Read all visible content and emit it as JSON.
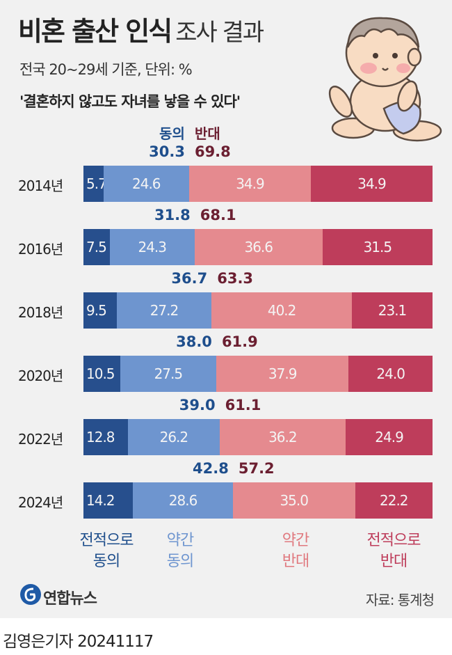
{
  "header": {
    "title_bold": "비혼 출산 인식",
    "title_light": "조사 결과",
    "subtitle": "전국 20~29세 기준, 단위: %",
    "question": "'결혼하지 않고도 자녀를 낳을 수 있다'"
  },
  "column_labels": {
    "agree": "동의",
    "oppose": "반대"
  },
  "legend": {
    "strong_agree": [
      "전적으로",
      "동의"
    ],
    "weak_agree": [
      "약간",
      "동의"
    ],
    "weak_oppose": [
      "약간",
      "반대"
    ],
    "strong_oppose": [
      "전적으로",
      "반대"
    ]
  },
  "colors": {
    "strong_agree": "#274f8d",
    "weak_agree": "#6e95cf",
    "weak_oppose": "#e58a8f",
    "strong_oppose": "#be3d5b",
    "agree_text": "#1e4e8c",
    "oppose_text": "#6b1f31"
  },
  "footer": {
    "logo_text": "연합뉴스",
    "source": "자료: 통계청",
    "credit": "김영은기자 20241117"
  },
  "chart_data": {
    "type": "bar",
    "orientation": "horizontal-stacked",
    "categories": [
      "2014년",
      "2016년",
      "2018년",
      "2020년",
      "2022년",
      "2024년"
    ],
    "series": [
      {
        "name": "전적으로 동의",
        "values": [
          5.7,
          7.5,
          9.5,
          10.5,
          12.8,
          14.2
        ]
      },
      {
        "name": "약간 동의",
        "values": [
          24.6,
          24.3,
          27.2,
          27.5,
          26.2,
          28.6
        ]
      },
      {
        "name": "약간 반대",
        "values": [
          34.9,
          36.6,
          40.2,
          37.9,
          36.2,
          35.0
        ]
      },
      {
        "name": "전적으로 반대",
        "values": [
          34.9,
          31.5,
          23.1,
          24.0,
          24.9,
          22.2
        ]
      }
    ],
    "agree_totals": [
      "30.3",
      "31.8",
      "36.7",
      "38.0",
      "39.0",
      "42.8"
    ],
    "oppose_totals": [
      "69.8",
      "68.1",
      "63.3",
      "61.9",
      "61.1",
      "57.2"
    ],
    "value_labels": [
      [
        "5.7",
        "24.6",
        "34.9",
        "34.9"
      ],
      [
        "7.5",
        "24.3",
        "36.6",
        "31.5"
      ],
      [
        "9.5",
        "27.2",
        "40.2",
        "23.1"
      ],
      [
        "10.5",
        "27.5",
        "37.9",
        "24.0"
      ],
      [
        "12.8",
        "26.2",
        "36.2",
        "24.9"
      ],
      [
        "14.2",
        "28.6",
        "35.0",
        "22.2"
      ]
    ]
  }
}
